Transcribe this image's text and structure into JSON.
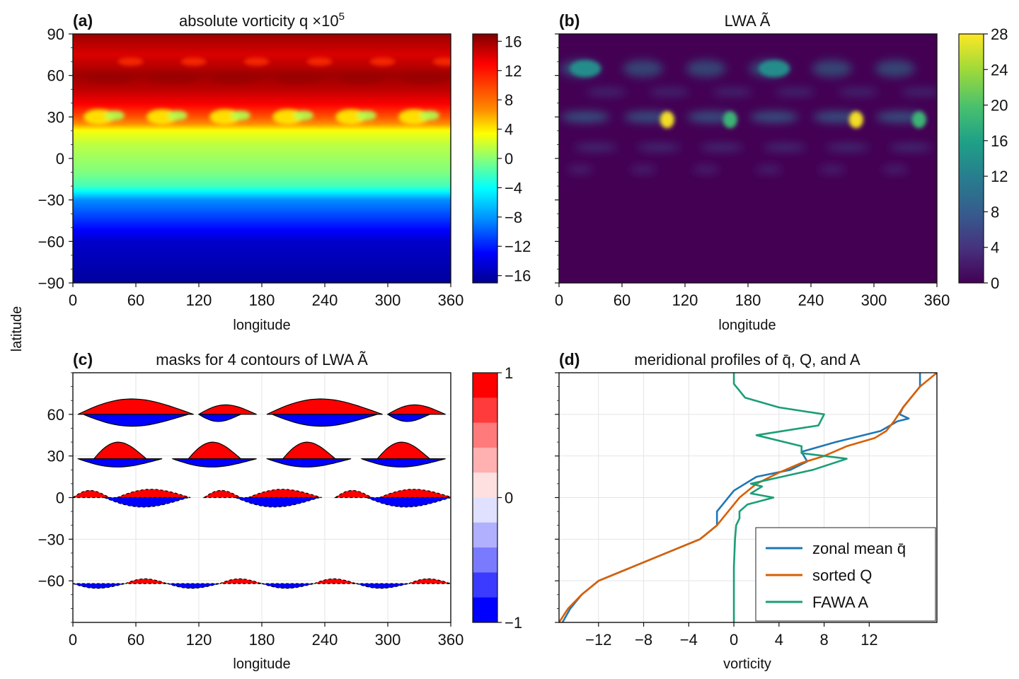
{
  "figure": {
    "shared_ylabel": "latitude"
  },
  "chart_data": [
    {
      "id": "a",
      "letter": "(a)",
      "type": "heatmap",
      "title": "absolute vorticity q × 10⁵",
      "title_main": "absolute vorticity q ×10",
      "title_sup": "5",
      "xlabel": "longitude",
      "ylabel": "latitude",
      "xlim": [
        0,
        360
      ],
      "ylim": [
        -90,
        90
      ],
      "xticks": [
        0,
        60,
        120,
        180,
        240,
        300,
        360
      ],
      "xtick_labels": [
        "0",
        "60",
        "120",
        "180",
        "240",
        "300",
        "360"
      ],
      "yticks": [
        90,
        60,
        30,
        0,
        -30,
        -60,
        -90
      ],
      "ytick_labels": [
        "90",
        "60",
        "30",
        "0",
        "−30",
        "−60",
        "−90"
      ],
      "colormap": "jet",
      "colorbar": {
        "range": [
          -17,
          17
        ],
        "ticks": [
          16,
          12,
          8,
          4,
          0,
          -4,
          -8,
          -12,
          -16
        ],
        "tick_labels": [
          "16",
          "12",
          "8",
          "4",
          "0",
          "−4",
          "−8",
          "−12",
          "−16"
        ]
      },
      "zonal_profile": {
        "lat": [
          -90,
          -60,
          -30,
          -20,
          -10,
          0,
          10,
          20,
          25,
          30,
          40,
          50,
          60,
          75,
          90
        ],
        "value": [
          -16,
          -14.5,
          -8,
          -2,
          0,
          1,
          2,
          4,
          8,
          10,
          13,
          15,
          16,
          14,
          16
        ]
      }
    },
    {
      "id": "b",
      "letter": "(b)",
      "type": "heatmap",
      "title": "LWA Ã",
      "title_text": "LWA Ã",
      "xlabel": "longitude",
      "xlim": [
        0,
        360
      ],
      "ylim": [
        -90,
        90
      ],
      "xticks": [
        0,
        60,
        120,
        180,
        240,
        300,
        360
      ],
      "xtick_labels": [
        "0",
        "60",
        "120",
        "180",
        "240",
        "300",
        "360"
      ],
      "colormap": "viridis",
      "colorbar": {
        "range": [
          0,
          28
        ],
        "ticks": [
          28,
          24,
          20,
          16,
          12,
          8,
          4,
          0
        ],
        "tick_labels": [
          "28",
          "24",
          "20",
          "16",
          "12",
          "8",
          "4",
          "0"
        ]
      },
      "hotspots": [
        {
          "lon": 103,
          "lat": 28,
          "value": 27
        },
        {
          "lon": 283,
          "lat": 28,
          "value": 27
        },
        {
          "lon": 163,
          "lat": 28,
          "value": 15
        },
        {
          "lon": 343,
          "lat": 28,
          "value": 15
        },
        {
          "lon": 25,
          "lat": 65,
          "value": 12
        },
        {
          "lon": 205,
          "lat": 65,
          "value": 12
        }
      ]
    },
    {
      "id": "c",
      "letter": "(c)",
      "type": "heatmap",
      "title": "masks for 4 contours of LWA Ã",
      "title_text": "masks for 4 contours of LWA Ã",
      "xlabel": "longitude",
      "xlim": [
        0,
        360
      ],
      "ylim": [
        -90,
        90
      ],
      "xticks": [
        0,
        60,
        120,
        180,
        240,
        300,
        360
      ],
      "xtick_labels": [
        "0",
        "60",
        "120",
        "180",
        "240",
        "300",
        "360"
      ],
      "yticks": [
        60,
        30,
        0,
        -30,
        -60
      ],
      "ytick_labels": [
        "60",
        "30",
        "0",
        "−30",
        "−60"
      ],
      "contour_latitudes": [
        60,
        28,
        0,
        -65
      ],
      "mask_colors": {
        "positive": "#ff0000",
        "negative": "#0000ff"
      },
      "colorbar": {
        "range": [
          -1,
          1
        ],
        "ticks": [
          1,
          0,
          -1
        ],
        "tick_labels": [
          "1",
          "0",
          "−1"
        ]
      }
    },
    {
      "id": "d",
      "letter": "(d)",
      "type": "line",
      "title": "meridional profiles of q̄, Q, and A",
      "title_text": "meridional profiles of q̄, Q, and A",
      "xlabel": "vorticity",
      "xlim": [
        -15.5,
        18
      ],
      "ylim": [
        -90,
        90
      ],
      "xticks": [
        -12,
        -8,
        -4,
        0,
        4,
        8,
        12
      ],
      "xtick_labels": [
        "−12",
        "−8",
        "−4",
        "0",
        "4",
        "8",
        "12"
      ],
      "legend_position": "lower-right",
      "series": [
        {
          "name": "zonal mean q̄",
          "color": "#1f77b4",
          "x": [
            -15.2,
            -14.5,
            -13.5,
            -12,
            -9,
            -6,
            -3,
            -1.5,
            -1.5,
            0,
            2,
            5,
            6.5,
            6,
            9,
            13,
            14.5,
            15.5,
            14.7,
            15,
            15.5,
            16.5,
            16.5
          ],
          "y": [
            -90,
            -80,
            -70,
            -60,
            -50,
            -40,
            -30,
            -20,
            -10,
            5,
            15,
            20,
            26,
            33,
            40,
            48,
            55,
            57,
            60,
            65,
            70,
            80,
            90
          ]
        },
        {
          "name": "sorted Q",
          "color": "#d95f02",
          "x": [
            -15.5,
            -14.7,
            -13.5,
            -12,
            -9,
            -6,
            -3,
            -1.5,
            -0.5,
            0.5,
            2,
            4,
            6,
            8,
            10,
            12.5,
            13.5,
            14.2,
            15,
            16.5,
            18
          ],
          "y": [
            -90,
            -80,
            -70,
            -60,
            -50,
            -40,
            -30,
            -20,
            -10,
            0,
            10,
            18,
            25,
            30,
            37,
            43,
            48,
            55,
            65,
            80,
            90
          ]
        },
        {
          "name": "FAWA A",
          "color": "#1b9e77",
          "x": [
            0,
            0,
            0,
            0.1,
            0.2,
            0.5,
            0.5,
            1.2,
            3.5,
            1.5,
            2.5,
            1.5,
            7,
            10,
            6,
            6,
            2,
            7.5,
            8,
            4,
            1,
            0,
            0
          ],
          "y": [
            -90,
            -70,
            -50,
            -30,
            -20,
            -15,
            -10,
            -5,
            0,
            3,
            8,
            10,
            20,
            28,
            32,
            37,
            45,
            52,
            60,
            65,
            72,
            82,
            90
          ]
        }
      ]
    }
  ]
}
